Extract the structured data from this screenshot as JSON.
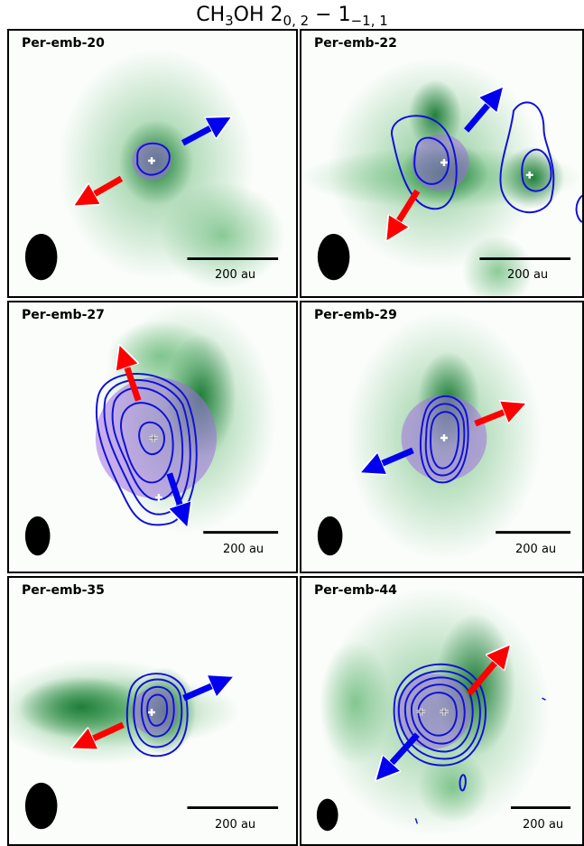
{
  "title": {
    "prefix": "CH",
    "sub1": "3",
    "mid": "OH 2",
    "sub2": "0, 2",
    "dash": " − 1",
    "sub3": "−1, 1"
  },
  "colors": {
    "emission": "#1e8a3c",
    "contour": "#1010d8",
    "red_arrow": "#ff0000",
    "blue_arrow": "#0000ee",
    "beam_circle": "#a070e0"
  },
  "panels": [
    {
      "name": "Per-emb-20",
      "scalebar": "200 au"
    },
    {
      "name": "Per-emb-22",
      "scalebar": "200 au"
    },
    {
      "name": "Per-emb-27",
      "scalebar": "200 au"
    },
    {
      "name": "Per-emb-29",
      "scalebar": "200 au"
    },
    {
      "name": "Per-emb-35",
      "scalebar": "200 au"
    },
    {
      "name": "Per-emb-44",
      "scalebar": "200 au"
    }
  ]
}
